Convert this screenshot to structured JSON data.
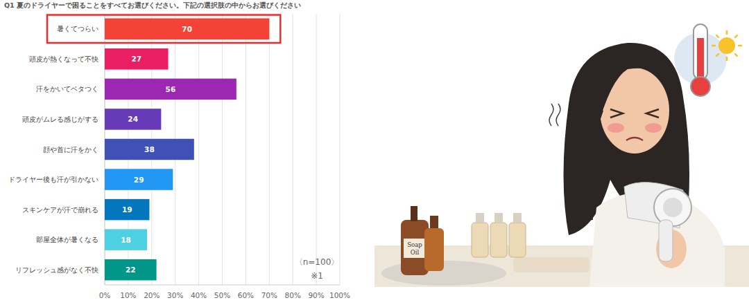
{
  "chart_data": {
    "type": "bar",
    "orientation": "horizontal",
    "title": "Q1 夏のドライヤーで困ることをすべてお選びください。下記の選択肢の中からお選びください",
    "categories": [
      "暑くてつらい",
      "頭皮が熱くなって不快",
      "汗をかいてベタつく",
      "頭皮がムレる感じがする",
      "顔や首に汗をかく",
      "ドライヤー後も汗が引かない",
      "スキンケアが汗で崩れる",
      "部屋全体が暑くなる",
      "リフレッシュ感がなく不快"
    ],
    "values": [
      70,
      27,
      56,
      24,
      38,
      29,
      19,
      18,
      22
    ],
    "colors": [
      "#f44336",
      "#e91e63",
      "#9c27b0",
      "#673ab7",
      "#3f51b5",
      "#2196f3",
      "#0277bd",
      "#4dd0e1",
      "#009688"
    ],
    "xlim": [
      0,
      100
    ],
    "xticks": [
      {
        "value": 0,
        "label": "0%"
      },
      {
        "value": 10,
        "label": "10%"
      },
      {
        "value": 20,
        "label": "20%"
      },
      {
        "value": 30,
        "label": "30%"
      },
      {
        "value": 40,
        "label": "40%"
      },
      {
        "value": 50,
        "label": "50%"
      },
      {
        "value": 60,
        "label": "60%"
      },
      {
        "value": 70,
        "label": "70%"
      },
      {
        "value": 80,
        "label": "80%"
      },
      {
        "value": 90,
        "label": "90%"
      },
      {
        "value": 100,
        "label": "100%"
      }
    ],
    "grid": true,
    "data_labels": true,
    "annotations": [
      "〈n=100〉",
      "※1"
    ]
  },
  "illustration": {
    "bottle_label": [
      "Soap",
      "Oil"
    ]
  }
}
